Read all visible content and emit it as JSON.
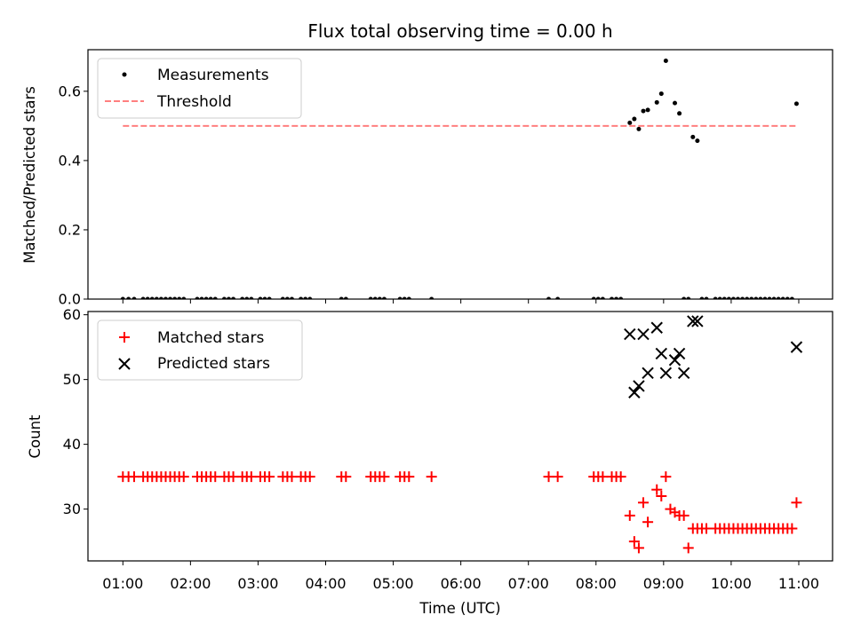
{
  "chart_data": {
    "title": "Flux total observing time = 0.00 h",
    "xlabel": "Time (UTC)",
    "xlim": [
      "00:29",
      "11:30"
    ],
    "xticks": [
      "01:00",
      "02:00",
      "03:00",
      "04:00",
      "05:00",
      "06:00",
      "07:00",
      "08:00",
      "09:00",
      "10:00",
      "11:00"
    ],
    "panels": [
      {
        "type": "scatter",
        "ylabel": "Matched/Predicted stars",
        "ylim": [
          0,
          0.72
        ],
        "yticks": [
          "0.0",
          "0.2",
          "0.4",
          "0.6"
        ],
        "legend": "upper-left",
        "series": [
          {
            "name": "Measurements",
            "marker": "dot",
            "color": "#000000",
            "x": [
              "01:00",
              "01:05",
              "01:10",
              "01:18",
              "01:22",
              "01:26",
              "01:30",
              "01:34",
              "01:38",
              "01:42",
              "01:46",
              "01:50",
              "01:54",
              "02:06",
              "02:10",
              "02:14",
              "02:18",
              "02:22",
              "02:30",
              "02:34",
              "02:38",
              "02:46",
              "02:50",
              "02:54",
              "03:02",
              "03:06",
              "03:10",
              "03:22",
              "03:26",
              "03:30",
              "03:38",
              "03:42",
              "03:46",
              "04:14",
              "04:18",
              "04:40",
              "04:44",
              "04:48",
              "04:52",
              "05:06",
              "05:10",
              "05:14",
              "05:34",
              "07:18",
              "07:26",
              "07:58",
              "08:02",
              "08:06",
              "08:14",
              "08:18",
              "08:22",
              "08:30",
              "08:34",
              "08:38",
              "08:42",
              "08:46",
              "08:54",
              "08:58",
              "09:02",
              "09:10",
              "09:14",
              "09:18",
              "09:22",
              "09:26",
              "09:30",
              "09:34",
              "09:38",
              "09:46",
              "09:50",
              "09:54",
              "09:58",
              "10:02",
              "10:06",
              "10:10",
              "10:14",
              "10:18",
              "10:22",
              "10:26",
              "10:30",
              "10:34",
              "10:38",
              "10:42",
              "10:46",
              "10:50",
              "10:54",
              "10:58"
            ],
            "y": [
              0,
              0,
              0,
              0,
              0,
              0,
              0,
              0,
              0,
              0,
              0,
              0,
              0,
              0,
              0,
              0,
              0,
              0,
              0,
              0,
              0,
              0,
              0,
              0,
              0,
              0,
              0,
              0,
              0,
              0,
              0,
              0,
              0,
              0,
              0,
              0,
              0,
              0,
              0,
              0,
              0,
              0,
              0,
              0,
              0,
              0,
              0,
              0,
              0,
              0,
              0,
              0.509,
              0.52,
              0.491,
              0.543,
              0.546,
              0.568,
              0.593,
              0.688,
              0.566,
              0.536,
              0,
              0,
              0.468,
              0.457,
              0,
              0,
              0,
              0,
              0,
              0,
              0,
              0,
              0,
              0,
              0,
              0,
              0,
              0,
              0,
              0,
              0,
              0,
              0,
              0,
              0.564
            ]
          },
          {
            "name": "Threshold",
            "style": "dashed",
            "color": "#ff7f7f",
            "x": [
              "01:00",
              "10:58"
            ],
            "y": [
              0.5,
              0.5
            ]
          }
        ]
      },
      {
        "type": "scatter",
        "ylabel": "Count",
        "ylim": [
          22,
          60.5
        ],
        "yticks": [
          "30",
          "40",
          "50",
          "60"
        ],
        "legend": "upper-left",
        "series": [
          {
            "name": "Matched stars",
            "marker": "plus",
            "color": "#ff0000",
            "x": [
              "01:00",
              "01:05",
              "01:10",
              "01:18",
              "01:22",
              "01:26",
              "01:30",
              "01:34",
              "01:38",
              "01:42",
              "01:46",
              "01:50",
              "01:54",
              "02:06",
              "02:10",
              "02:14",
              "02:18",
              "02:22",
              "02:30",
              "02:34",
              "02:38",
              "02:46",
              "02:50",
              "02:54",
              "03:02",
              "03:06",
              "03:10",
              "03:22",
              "03:26",
              "03:30",
              "03:38",
              "03:42",
              "03:46",
              "04:14",
              "04:18",
              "04:40",
              "04:44",
              "04:48",
              "04:52",
              "05:06",
              "05:10",
              "05:14",
              "05:34",
              "07:18",
              "07:26",
              "07:58",
              "08:02",
              "08:06",
              "08:14",
              "08:18",
              "08:22",
              "08:30",
              "08:34",
              "08:38",
              "08:42",
              "08:46",
              "08:54",
              "08:58",
              "09:02",
              "09:06",
              "09:10",
              "09:14",
              "09:18",
              "09:22",
              "09:26",
              "09:30",
              "09:34",
              "09:38",
              "09:46",
              "09:50",
              "09:54",
              "09:58",
              "10:02",
              "10:06",
              "10:10",
              "10:14",
              "10:18",
              "10:22",
              "10:26",
              "10:30",
              "10:34",
              "10:38",
              "10:42",
              "10:46",
              "10:50",
              "10:54",
              "10:58"
            ],
            "y": [
              35,
              35,
              35,
              35,
              35,
              35,
              35,
              35,
              35,
              35,
              35,
              35,
              35,
              35,
              35,
              35,
              35,
              35,
              35,
              35,
              35,
              35,
              35,
              35,
              35,
              35,
              35,
              35,
              35,
              35,
              35,
              35,
              35,
              35,
              35,
              35,
              35,
              35,
              35,
              35,
              35,
              35,
              35,
              35,
              35,
              35,
              35,
              35,
              35,
              35,
              35,
              29,
              25,
              24,
              31,
              28,
              33,
              32,
              35,
              30,
              29.5,
              29,
              29,
              24,
              27,
              27,
              27,
              27,
              27,
              27,
              27,
              27,
              27,
              27,
              27,
              27,
              27,
              27,
              27,
              27,
              27,
              27,
              27,
              27,
              27,
              27,
              31
            ]
          },
          {
            "name": "Predicted stars",
            "marker": "x",
            "color": "#000000",
            "x": [
              "08:30",
              "08:34",
              "08:38",
              "08:42",
              "08:46",
              "08:54",
              "08:58",
              "09:02",
              "09:10",
              "09:14",
              "09:18",
              "09:26",
              "09:30",
              "10:58"
            ],
            "y": [
              57,
              48,
              49,
              57,
              51,
              58,
              54,
              51,
              53,
              54,
              51,
              59,
              59,
              55
            ]
          }
        ]
      }
    ]
  }
}
